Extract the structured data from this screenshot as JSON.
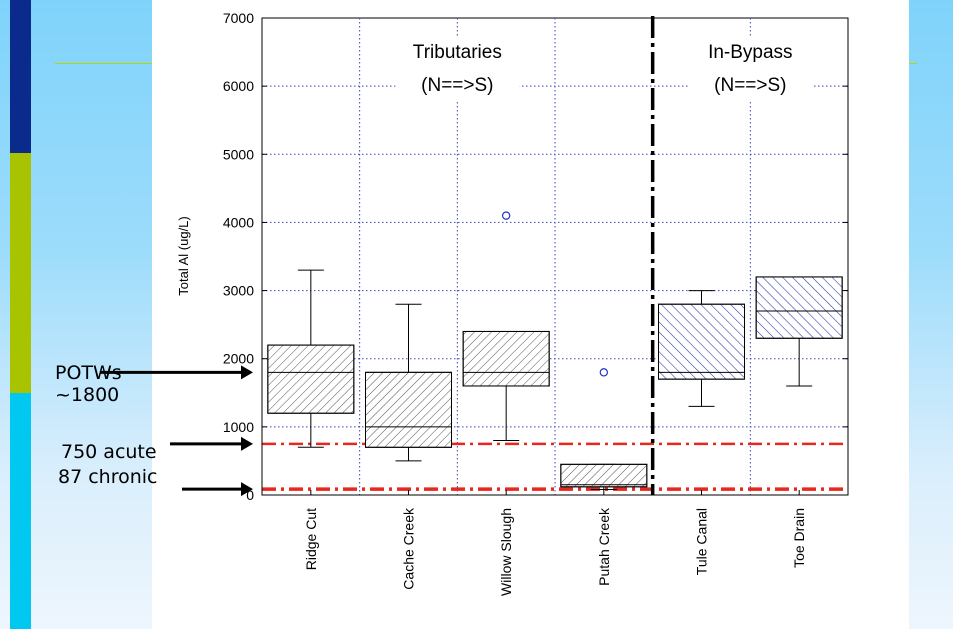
{
  "colors": {
    "slide_bar": [
      "#0a2a8c",
      "#a8c400",
      "#00c8f0"
    ],
    "gold_rule": "#b6d500",
    "box_hatch_tributary": "#555555",
    "box_hatch_bypass": "#2233aa",
    "outlier": "#2233cc",
    "criteria_line": "#e8281e"
  },
  "annotations": {
    "potws_line1": "POTWs",
    "potws_line2": "~1800",
    "acute": "750 acute",
    "chronic": "87 chronic"
  },
  "chart_data": {
    "type": "boxplot",
    "title": "",
    "ylabel": "Total Al (ug/L)",
    "xlabel": "",
    "ylim": [
      0,
      7000
    ],
    "yticks": [
      0,
      1000,
      2000,
      3000,
      4000,
      5000,
      6000,
      7000
    ],
    "grid": true,
    "groups": [
      {
        "label_line1": "Tributaries",
        "label_line2": "(N==>S)",
        "categories": [
          "Ridge Cut",
          "Cache Creek",
          "Willow Slough",
          "Putah Creek"
        ]
      },
      {
        "label_line1": "In-Bypass",
        "label_line2": "(N==>S)",
        "categories": [
          "Tule Canal",
          "Toe Drain"
        ]
      }
    ],
    "categories": [
      "Ridge Cut",
      "Cache Creek",
      "Willow Slough",
      "Putah Creek",
      "Tule Canal",
      "Toe Drain"
    ],
    "boxes": [
      {
        "name": "Ridge Cut",
        "min": 700,
        "q1": 1200,
        "median": 1800,
        "q3": 2200,
        "max": 3300,
        "outliers": [],
        "group": "tributary"
      },
      {
        "name": "Cache Creek",
        "min": 500,
        "q1": 700,
        "median": 1000,
        "q3": 1800,
        "max": 2800,
        "outliers": [],
        "group": "tributary"
      },
      {
        "name": "Willow Slough",
        "min": 800,
        "q1": 1600,
        "median": 1800,
        "q3": 2400,
        "max": 2400,
        "outliers": [
          4100
        ],
        "group": "tributary"
      },
      {
        "name": "Putah Creek",
        "min": 80,
        "q1": 120,
        "median": 150,
        "q3": 450,
        "max": 450,
        "outliers": [
          1800
        ],
        "group": "tributary"
      },
      {
        "name": "Tule Canal",
        "min": 1300,
        "q1": 1700,
        "median": 1800,
        "q3": 2800,
        "max": 3000,
        "outliers": [],
        "group": "bypass"
      },
      {
        "name": "Toe Drain",
        "min": 1600,
        "q1": 2300,
        "median": 2700,
        "q3": 3200,
        "max": 3200,
        "outliers": [],
        "group": "bypass"
      }
    ],
    "reference_lines": [
      {
        "value": 750
      },
      {
        "value": 87
      }
    ],
    "group_divider_after": "Putah Creek",
    "arrows_to_values": [
      1800,
      750,
      87
    ]
  }
}
